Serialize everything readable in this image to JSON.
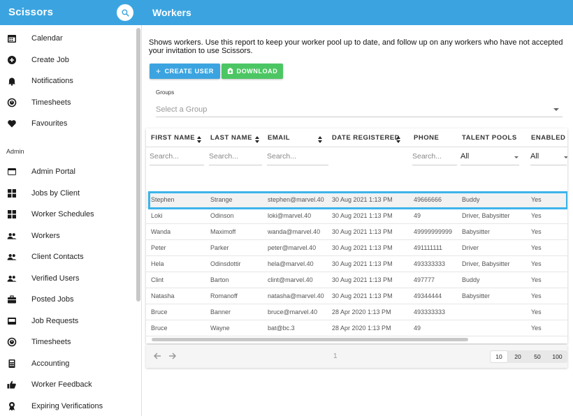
{
  "app": {
    "brand": "Scissors",
    "page_title": "Workers",
    "accent_color": "#3ba4e0",
    "download_color": "#4cc663",
    "highlight_color": "#3cb4ea"
  },
  "sidebar": {
    "items": [
      {
        "label": "Calendar",
        "icon": "calendar-icon"
      },
      {
        "label": "Create Job",
        "icon": "add-circle-icon"
      },
      {
        "label": "Notifications",
        "icon": "bell-icon"
      },
      {
        "label": "Timesheets",
        "icon": "timer-icon"
      },
      {
        "label": "Favourites",
        "icon": "heart-icon"
      }
    ],
    "admin_label": "Admin",
    "admin_items": [
      {
        "label": "Admin Portal",
        "icon": "portal-icon"
      },
      {
        "label": "Jobs by Client",
        "icon": "grid-icon"
      },
      {
        "label": "Worker Schedules",
        "icon": "grid-icon"
      },
      {
        "label": "Workers",
        "icon": "people-icon"
      },
      {
        "label": "Client Contacts",
        "icon": "people-icon"
      },
      {
        "label": "Verified Users",
        "icon": "people-icon"
      },
      {
        "label": "Posted Jobs",
        "icon": "briefcase-icon"
      },
      {
        "label": "Job Requests",
        "icon": "inbox-icon"
      },
      {
        "label": "Timesheets",
        "icon": "timer-icon"
      },
      {
        "label": "Accounting",
        "icon": "calculator-icon"
      },
      {
        "label": "Worker Feedback",
        "icon": "thumbs-up-icon"
      },
      {
        "label": "Expiring Verifications",
        "icon": "award-icon"
      }
    ]
  },
  "main": {
    "intro": "Shows workers. Use this report to keep your worker pool up to date, and follow up on any workers who have not accepted your invitation to use Scissors.",
    "create_user_label": "CREATE USER",
    "download_label": "DOWNLOAD",
    "groups_label": "Groups",
    "groups_placeholder": "Select a Group"
  },
  "table": {
    "columns": [
      "FIRST NAME",
      "LAST NAME",
      "EMAIL",
      "DATE REGISTERED",
      "PHONE",
      "TALENT POOLS",
      "ENABLED"
    ],
    "search_placeholder": "Search...",
    "talent_filter_value": "All",
    "enabled_filter_value": "All",
    "rows": [
      [
        "Stephen",
        "Strange",
        "stephen@marvel.40",
        "30 Aug 2021 1:13 PM",
        "49666666",
        "Buddy",
        "Yes"
      ],
      [
        "Loki",
        "Odinson",
        "loki@marvel.40",
        "30 Aug 2021 1:13 PM",
        "49",
        "Driver, Babysitter",
        "Yes"
      ],
      [
        "Wanda",
        "Maximoff",
        "wanda@marvel.40",
        "30 Aug 2021 1:13 PM",
        "49999999999",
        "Babysitter",
        "Yes"
      ],
      [
        "Peter",
        "Parker",
        "peter@marvel.40",
        "30 Aug 2021 1:13 PM",
        "491111111",
        "Driver",
        "Yes"
      ],
      [
        "Hela",
        "Odinsdottir",
        "hela@marvel.40",
        "30 Aug 2021 1:13 PM",
        "493333333",
        "Driver, Babysitter",
        "Yes"
      ],
      [
        "Clint",
        "Barton",
        "clint@marvel.40",
        "30 Aug 2021 1:13 PM",
        "497777",
        "Buddy",
        "Yes"
      ],
      [
        "Natasha",
        "Romanoff",
        "natasha@marvel.40",
        "30 Aug 2021 1:13 PM",
        "49344444",
        "Babysitter",
        "Yes"
      ],
      [
        "Bruce",
        "Banner",
        "bruce@marvel.40",
        "28 Apr 2020 1:13 PM",
        "493333333",
        "",
        "Yes"
      ],
      [
        "Bruce",
        "Wayne",
        "bat@bc.3",
        "28 Apr 2020 1:13 PM",
        "49",
        "",
        "Yes"
      ]
    ]
  },
  "pagination": {
    "current_page": "1",
    "page_sizes": [
      "10",
      "20",
      "50",
      "100"
    ],
    "selected_size": "10"
  }
}
